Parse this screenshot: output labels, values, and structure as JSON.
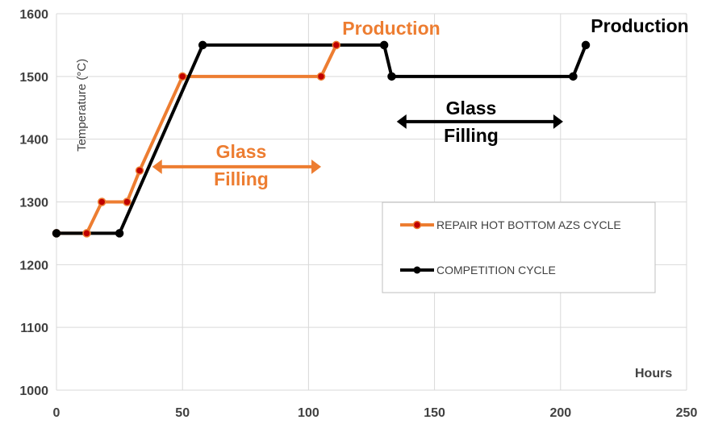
{
  "chart_data": {
    "type": "line",
    "title": "",
    "xlabel": "Hours",
    "ylabel": "Temperature (°C)",
    "xlim": [
      0,
      250
    ],
    "ylim": [
      1000,
      1600
    ],
    "x_ticks": [
      0,
      50,
      100,
      150,
      200,
      250
    ],
    "y_ticks": [
      1000,
      1100,
      1200,
      1300,
      1400,
      1500,
      1600
    ],
    "grid": true,
    "legend_position": "right-center",
    "series": [
      {
        "name": "REPAIR HOT BOTTOM AZS CYCLE",
        "color": "#ED7D31",
        "marker_fill": "#C00000",
        "points": [
          [
            0,
            1250
          ],
          [
            12,
            1250
          ],
          [
            18,
            1300
          ],
          [
            28,
            1300
          ],
          [
            33,
            1350
          ],
          [
            50,
            1500
          ],
          [
            105,
            1500
          ],
          [
            111,
            1550
          ]
        ]
      },
      {
        "name": "COMPETITION CYCLE",
        "color": "#000000",
        "marker_fill": "#000000",
        "points": [
          [
            0,
            1250
          ],
          [
            25,
            1250
          ],
          [
            58,
            1550
          ],
          [
            130,
            1550
          ],
          [
            133,
            1500
          ],
          [
            205,
            1500
          ],
          [
            210,
            1550
          ]
        ]
      }
    ],
    "annotations": [
      {
        "id": "orange-production",
        "text": "Production",
        "color": "#ED7D31"
      },
      {
        "id": "orange-glass",
        "text": "Glass",
        "color": "#ED7D31"
      },
      {
        "id": "orange-filling",
        "text": "Filling",
        "color": "#ED7D31"
      },
      {
        "id": "black-production",
        "text": "Production",
        "color": "#000000"
      },
      {
        "id": "black-glass",
        "text": "Glass",
        "color": "#000000"
      },
      {
        "id": "black-filling",
        "text": "Filling",
        "color": "#000000"
      }
    ],
    "arrows": [
      {
        "id": "orange-arrow",
        "x_range": [
          38,
          105
        ],
        "y": 1356,
        "color": "#ED7D31"
      },
      {
        "id": "black-arrow",
        "x_range": [
          135,
          201
        ],
        "y": 1428,
        "color": "#000000"
      }
    ]
  }
}
